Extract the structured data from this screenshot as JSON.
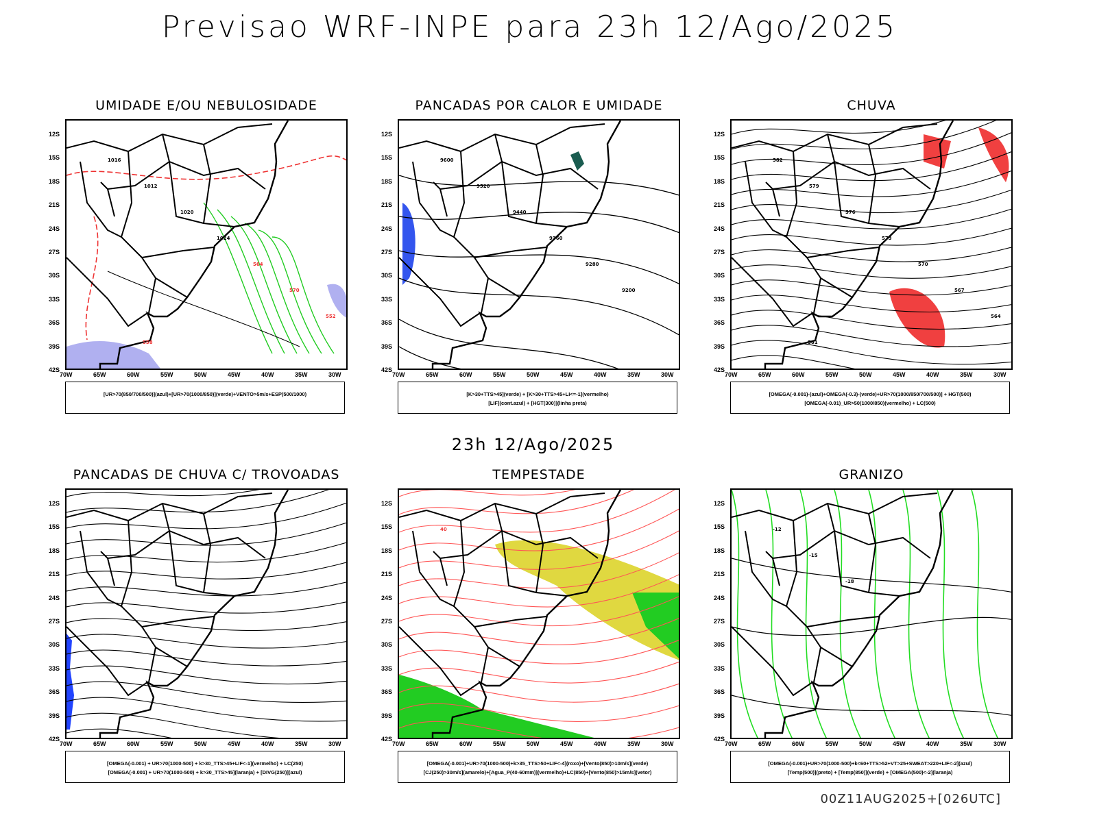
{
  "header": {
    "title": "Previsao WRF-INPE  para 23h 12/Ago/2025",
    "subtitle": "23h 12/Ago/2025"
  },
  "footer": "00Z11AUG2025+[026UTC]",
  "axes": {
    "lat_ticks": [
      "12S",
      "15S",
      "18S",
      "21S",
      "24S",
      "27S",
      "30S",
      "33S",
      "36S",
      "39S",
      "42S"
    ],
    "lon_ticks": [
      "70W",
      "65W",
      "60W",
      "55W",
      "50W",
      "45W",
      "40W",
      "35W",
      "30W"
    ]
  },
  "panels": [
    {
      "title": "UMIDADE E/OU NEBULOSIDADE",
      "legend": [
        "[UR>70(850/700/500)](azul)+[UR>70(1000/850)](verde)+VENTO>5m/s+ESP(500/1000)",
        ""
      ],
      "labels": [
        "1016",
        "1012",
        "1020",
        "1024",
        "564",
        "570",
        "552",
        "558"
      ]
    },
    {
      "title": "PANCADAS POR CALOR E UMIDADE",
      "legend": [
        "[K>30+TTS>45](verde) + [K>30+TTS>45+LI<=-1](vermelho)",
        "[LIF](cont.azul) + [HGT(300)](linha preta)"
      ],
      "labels": [
        "9600",
        "9520",
        "9440",
        "9360",
        "9280",
        "9200"
      ]
    },
    {
      "title": "CHUVA",
      "legend": [
        "[OMEGA(-0.001)-(azul)+OMEGA(-0.3)-(verde)+UR>70(1000/850/700/500)] + HGT(500)",
        "[OMEGA(-0.01)_UR>50(1000/850)(vermelho) + LC(500)"
      ],
      "labels": [
        "582",
        "579",
        "576",
        "573",
        "570",
        "567",
        "564",
        "561"
      ]
    },
    {
      "title": "PANCADAS DE CHUVA C/ TROVOADAS",
      "legend": [
        "[OMEGA(-0.001) + UR>70(1000-500) + k>30_TTS>45+LIF<-1](vermelho) + LC(250)",
        "[OMEGA(-0.001) + UR>70(1000-500) + k>30_TTS>45](laranja) + [DIVG(250)](azul)"
      ],
      "labels": []
    },
    {
      "title": "TEMPESTADE",
      "legend": [
        "[OMEGA(-0.001)+UR>70(1000-500)+k>35_TTS>50+LIF<-4](roxo)+[Vento(850)>10m/s](verde)",
        "[CJ(250)>30m/s](amarelo)+[Agua_P(40-60mm)](vermelho)+LC(850)+[Vento(850)>15m/s](vetor)"
      ],
      "labels": [
        "40"
      ]
    },
    {
      "title": "GRANIZO",
      "legend": [
        "[OMEGA(-0.001)+UR>70(1000-500)+k<60+TTS>52+VT>25+SWEAT>220+LIF<-2](azul)",
        "[Temp(500)](preto) + [Temp(850)](verde) + [OMEGA(500)<-2](laranja)"
      ],
      "labels": [
        "-12",
        "-15",
        "-18"
      ]
    }
  ]
}
